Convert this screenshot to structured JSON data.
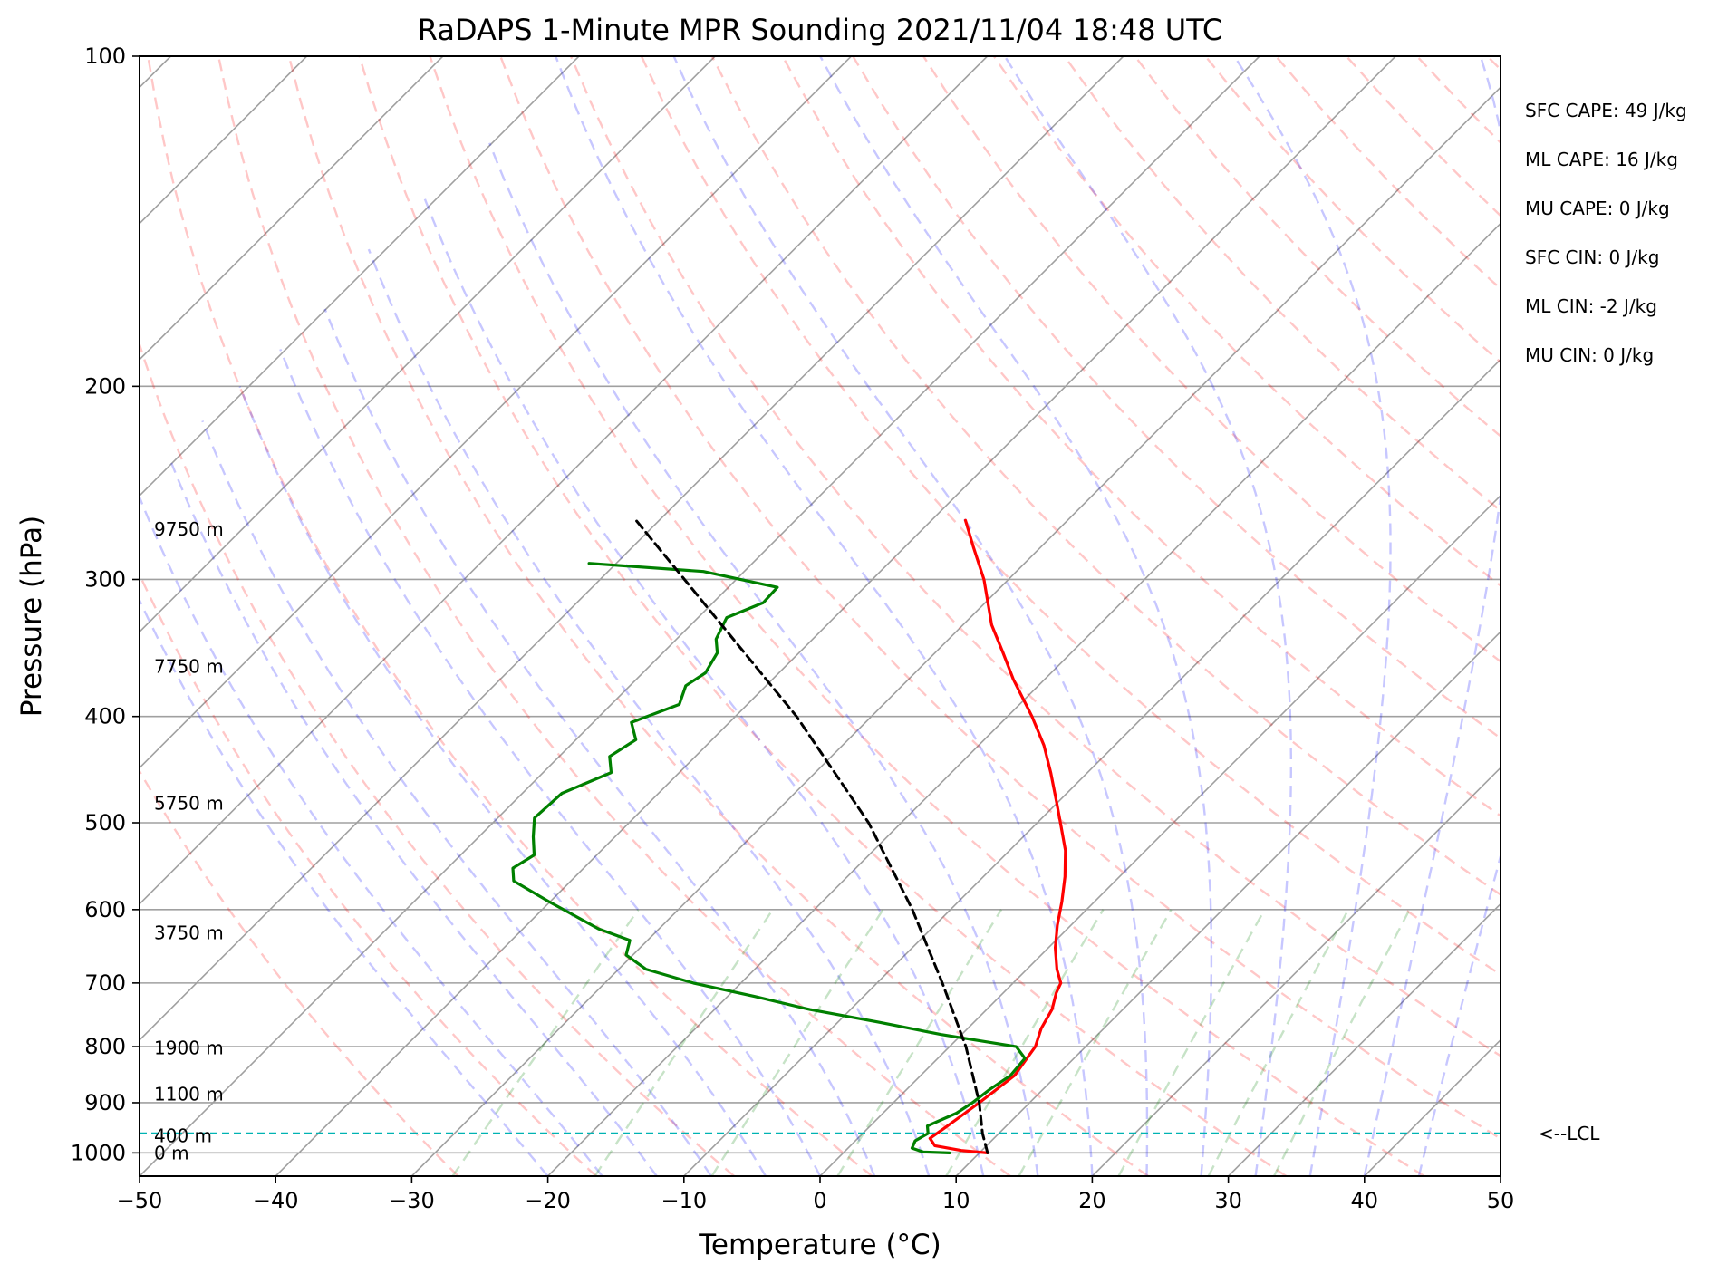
{
  "chart_data": {
    "type": "line",
    "title": "RaDAPS 1-Minute MPR Sounding 2021/11/04 18:48 UTC",
    "xlabel": "Temperature (°C)",
    "ylabel": "Pressure (hPa)",
    "xlim": [
      -50,
      50
    ],
    "ylim": [
      1050,
      100
    ],
    "x_scale": "skew-T",
    "y_scale": "log",
    "grid": true,
    "x_ticks": [
      -50,
      -40,
      -30,
      -20,
      -10,
      0,
      10,
      20,
      30,
      40,
      50
    ],
    "x_tick_labels": [
      "−50",
      "−40",
      "−30",
      "−20",
      "−10",
      "0",
      "10",
      "20",
      "30",
      "40",
      "50"
    ],
    "y_ticks": [
      100,
      200,
      300,
      400,
      500,
      600,
      700,
      800,
      900,
      1000
    ],
    "y_tick_labels": [
      "100",
      "200",
      "300",
      "400",
      "500",
      "600",
      "700",
      "800",
      "900",
      "1000"
    ],
    "series": [
      {
        "role": "temperature",
        "color": "#ff0000",
        "points": [
          {
            "p": 1000,
            "t": 10.6
          },
          {
            "p": 995,
            "t": 8.5
          },
          {
            "p": 985,
            "t": 6.2
          },
          {
            "p": 970,
            "t": 5.3
          },
          {
            "p": 950,
            "t": 5.6
          },
          {
            "p": 900,
            "t": 6.3
          },
          {
            "p": 850,
            "t": 6.9
          },
          {
            "p": 800,
            "t": 6.3
          },
          {
            "p": 770,
            "t": 5.4
          },
          {
            "p": 740,
            "t": 4.8
          },
          {
            "p": 715,
            "t": 3.9
          },
          {
            "p": 700,
            "t": 3.5
          },
          {
            "p": 680,
            "t": 2.2
          },
          {
            "p": 650,
            "t": 0.5
          },
          {
            "p": 620,
            "t": -1.0
          },
          {
            "p": 590,
            "t": -2.4
          },
          {
            "p": 560,
            "t": -4.0
          },
          {
            "p": 530,
            "t": -5.9
          },
          {
            "p": 500,
            "t": -8.3
          },
          {
            "p": 480,
            "t": -10.0
          },
          {
            "p": 450,
            "t": -12.7
          },
          {
            "p": 425,
            "t": -15.2
          },
          {
            "p": 400,
            "t": -18.2
          },
          {
            "p": 370,
            "t": -22.3
          },
          {
            "p": 350,
            "t": -25.0
          },
          {
            "p": 330,
            "t": -27.9
          },
          {
            "p": 300,
            "t": -31.8
          },
          {
            "p": 280,
            "t": -35.0
          },
          {
            "p": 265,
            "t": -37.5
          }
        ]
      },
      {
        "role": "dewpoint",
        "color": "#008000",
        "points": [
          {
            "p": 1000,
            "t": 7.8
          },
          {
            "p": 998,
            "t": 5.8
          },
          {
            "p": 990,
            "t": 4.7
          },
          {
            "p": 975,
            "t": 4.4
          },
          {
            "p": 960,
            "t": 4.8
          },
          {
            "p": 945,
            "t": 4.2
          },
          {
            "p": 920,
            "t": 5.4
          },
          {
            "p": 900,
            "t": 5.8
          },
          {
            "p": 875,
            "t": 6.1
          },
          {
            "p": 850,
            "t": 6.6
          },
          {
            "p": 820,
            "t": 6.4
          },
          {
            "p": 800,
            "t": 4.9
          },
          {
            "p": 780,
            "t": -1.5
          },
          {
            "p": 760,
            "t": -7.0
          },
          {
            "p": 740,
            "t": -13.0
          },
          {
            "p": 720,
            "t": -18.0
          },
          {
            "p": 700,
            "t": -23.5
          },
          {
            "p": 680,
            "t": -28.0
          },
          {
            "p": 660,
            "t": -30.5
          },
          {
            "p": 640,
            "t": -31.3
          },
          {
            "p": 625,
            "t": -34.4
          },
          {
            "p": 590,
            "t": -40.1
          },
          {
            "p": 565,
            "t": -44.2
          },
          {
            "p": 550,
            "t": -45.2
          },
          {
            "p": 535,
            "t": -44.6
          },
          {
            "p": 515,
            "t": -46.0
          },
          {
            "p": 495,
            "t": -47.3
          },
          {
            "p": 470,
            "t": -47.1
          },
          {
            "p": 450,
            "t": -45.0
          },
          {
            "p": 435,
            "t": -46.3
          },
          {
            "p": 420,
            "t": -45.6
          },
          {
            "p": 405,
            "t": -47.2
          },
          {
            "p": 390,
            "t": -45.0
          },
          {
            "p": 375,
            "t": -45.9
          },
          {
            "p": 365,
            "t": -45.4
          },
          {
            "p": 350,
            "t": -46.0
          },
          {
            "p": 340,
            "t": -47.1
          },
          {
            "p": 325,
            "t": -47.9
          },
          {
            "p": 315,
            "t": -46.3
          },
          {
            "p": 305,
            "t": -46.4
          },
          {
            "p": 295,
            "t": -53.0
          },
          {
            "p": 290,
            "t": -62.0
          }
        ]
      },
      {
        "role": "parcel",
        "color": "#000000",
        "points": [
          {
            "p": 1000,
            "t": 10.6
          },
          {
            "p": 960,
            "t": 8.8
          },
          {
            "p": 900,
            "t": 6.3
          },
          {
            "p": 800,
            "t": 1.2
          },
          {
            "p": 700,
            "t": -5.2
          },
          {
            "p": 600,
            "t": -12.8
          },
          {
            "p": 500,
            "t": -22.4
          },
          {
            "p": 400,
            "t": -35.5
          },
          {
            "p": 300,
            "t": -53.8
          },
          {
            "p": 265,
            "t": -61.7
          }
        ]
      }
    ],
    "reference_lines": {
      "isotherm_step_c": 10,
      "dry_adiabat_color": "#ff0000",
      "moist_adiabat_color": "#0000ff",
      "mixing_ratio_color": "#008000"
    },
    "lcl": {
      "p": 960,
      "label": "<--LCL",
      "color": "#00b3b3"
    },
    "height_labels": [
      {
        "p": 1000,
        "label": "0 m"
      },
      {
        "p": 965,
        "label": "400 m"
      },
      {
        "p": 884,
        "label": "1100 m"
      },
      {
        "p": 802,
        "label": "1900 m"
      },
      {
        "p": 630,
        "label": "3750 m"
      },
      {
        "p": 480,
        "label": "5750 m"
      },
      {
        "p": 360,
        "label": "7750 m"
      },
      {
        "p": 270,
        "label": "9750 m"
      }
    ],
    "stats": [
      "SFC CAPE: 49 J/kg",
      "ML CAPE: 16 J/kg",
      "MU CAPE: 0 J/kg",
      "SFC CIN: 0 J/kg",
      "ML CIN: -2 J/kg",
      "MU CIN: 0 J/kg"
    ]
  }
}
